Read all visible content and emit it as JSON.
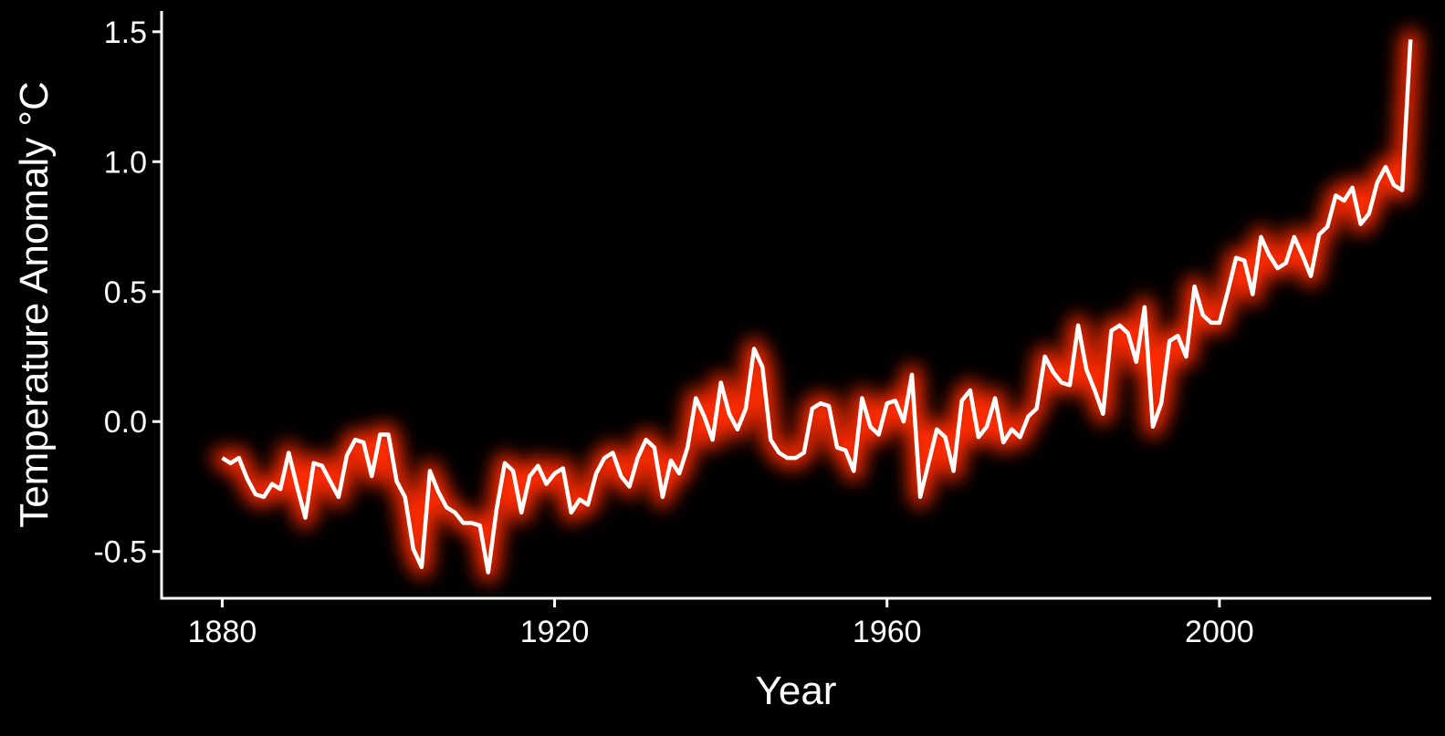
{
  "chart_data": {
    "type": "line",
    "title": "",
    "xlabel": "Year",
    "ylabel": "Temperature Anomaly °C",
    "xlim": [
      1872.7,
      2025.5
    ],
    "ylim": [
      -0.68,
      1.58
    ],
    "x_ticks": [
      1880,
      1920,
      1960,
      2000
    ],
    "x_tick_labels": [
      "1880",
      "1920",
      "1960",
      "2000"
    ],
    "y_ticks": [
      -0.5,
      0.0,
      0.5,
      1.0,
      1.5
    ],
    "y_tick_labels": [
      "-0.5",
      "0.0",
      "0.5",
      "1.0",
      "1.5"
    ],
    "grid": false,
    "colors": {
      "background": "#000000",
      "line": "#ffffff",
      "glow": "#ff2a00",
      "axis": "#ffffff"
    },
    "series": [
      {
        "x": [
          1880,
          1881,
          1882,
          1883,
          1884,
          1885,
          1886,
          1887,
          1888,
          1889,
          1890,
          1891,
          1892,
          1893,
          1894,
          1895,
          1896,
          1897,
          1898,
          1899,
          1900,
          1901,
          1902,
          1903,
          1904,
          1905,
          1906,
          1907,
          1908,
          1909,
          1910,
          1911,
          1912,
          1913,
          1914,
          1915,
          1916,
          1917,
          1918,
          1919,
          1920,
          1921,
          1922,
          1923,
          1924,
          1925,
          1926,
          1927,
          1928,
          1929,
          1930,
          1931,
          1932,
          1933,
          1934,
          1935,
          1936,
          1937,
          1938,
          1939,
          1940,
          1941,
          1942,
          1943,
          1944,
          1945,
          1946,
          1947,
          1948,
          1949,
          1950,
          1951,
          1952,
          1953,
          1954,
          1955,
          1956,
          1957,
          1958,
          1959,
          1960,
          1961,
          1962,
          1963,
          1964,
          1965,
          1966,
          1967,
          1968,
          1969,
          1970,
          1971,
          1972,
          1973,
          1974,
          1975,
          1976,
          1977,
          1978,
          1979,
          1980,
          1981,
          1982,
          1983,
          1984,
          1985,
          1986,
          1987,
          1988,
          1989,
          1990,
          1991,
          1992,
          1993,
          1994,
          1995,
          1996,
          1997,
          1998,
          1999,
          2000,
          2001,
          2002,
          2003,
          2004,
          2005,
          2006,
          2007,
          2008,
          2009,
          2010,
          2011,
          2012,
          2013,
          2014,
          2015,
          2016,
          2017,
          2018,
          2019,
          2020,
          2021,
          2022,
          2023
        ],
        "values": [
          -0.14,
          -0.16,
          -0.14,
          -0.22,
          -0.28,
          -0.29,
          -0.24,
          -0.26,
          -0.12,
          -0.25,
          -0.37,
          -0.16,
          -0.17,
          -0.23,
          -0.29,
          -0.13,
          -0.07,
          -0.08,
          -0.21,
          -0.05,
          -0.05,
          -0.23,
          -0.29,
          -0.49,
          -0.56,
          -0.19,
          -0.27,
          -0.33,
          -0.35,
          -0.39,
          -0.39,
          -0.4,
          -0.58,
          -0.34,
          -0.16,
          -0.19,
          -0.35,
          -0.21,
          -0.17,
          -0.24,
          -0.2,
          -0.18,
          -0.35,
          -0.3,
          -0.32,
          -0.2,
          -0.14,
          -0.12,
          -0.21,
          -0.25,
          -0.14,
          -0.07,
          -0.1,
          -0.29,
          -0.15,
          -0.2,
          -0.1,
          0.09,
          0.02,
          -0.07,
          0.15,
          0.03,
          -0.03,
          0.05,
          0.28,
          0.21,
          -0.07,
          -0.12,
          -0.14,
          -0.14,
          -0.12,
          0.05,
          0.07,
          0.06,
          -0.1,
          -0.11,
          -0.19,
          0.09,
          -0.02,
          -0.05,
          0.07,
          0.08,
          0.0,
          0.18,
          -0.29,
          -0.16,
          -0.03,
          -0.06,
          -0.19,
          0.08,
          0.12,
          -0.06,
          -0.02,
          0.09,
          -0.08,
          -0.03,
          -0.06,
          0.02,
          0.05,
          0.25,
          0.19,
          0.15,
          0.14,
          0.37,
          0.2,
          0.12,
          0.03,
          0.35,
          0.37,
          0.34,
          0.23,
          0.44,
          -0.02,
          0.07,
          0.31,
          0.33,
          0.25,
          0.52,
          0.41,
          0.38,
          0.38,
          0.5,
          0.63,
          0.62,
          0.49,
          0.71,
          0.64,
          0.59,
          0.61,
          0.71,
          0.64,
          0.56,
          0.72,
          0.75,
          0.87,
          0.85,
          0.9,
          0.76,
          0.8,
          0.92,
          0.98,
          0.91,
          0.89,
          1.47
        ]
      }
    ]
  }
}
